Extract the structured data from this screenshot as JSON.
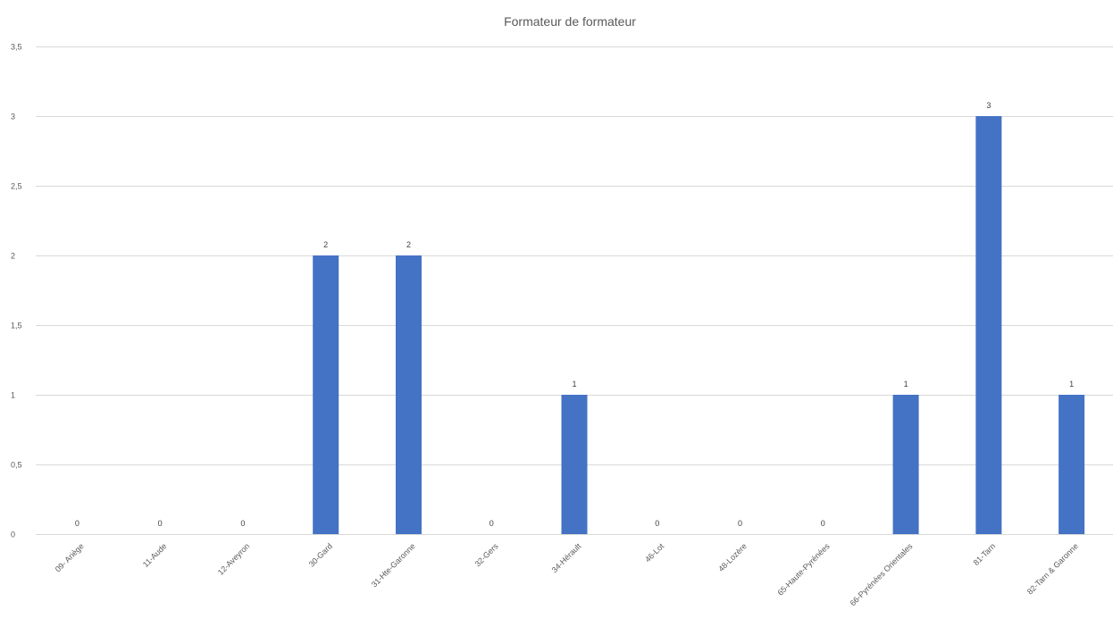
{
  "chart_data": {
    "type": "bar",
    "title": "Formateur de formateur",
    "xlabel": "",
    "ylabel": "",
    "categories": [
      "09- Ariège",
      "11-Aude",
      "12-Aveyron",
      "30-Gard",
      "31-Hte-Garonne",
      "32-Gers",
      "34-Hérault",
      "46-Lot",
      "48-Lozère",
      "65-Haute-Pyrénées",
      "66-Pyrénées Orientales",
      "81-Tarn",
      "82-Tarn & Garonne"
    ],
    "values": [
      0,
      0,
      0,
      2,
      2,
      0,
      1,
      0,
      0,
      0,
      1,
      3,
      1
    ],
    "data_labels": [
      "0",
      "0",
      "0",
      "2",
      "2",
      "0",
      "1",
      "0",
      "0",
      "0",
      "1",
      "3",
      "1"
    ],
    "ylim": [
      0,
      3.5
    ],
    "yticks": [
      0,
      0.5,
      1,
      1.5,
      2,
      2.5,
      3,
      3.5
    ],
    "ytick_labels": [
      "0",
      "0,5",
      "1",
      "1,5",
      "2",
      "2,5",
      "3",
      "3,5"
    ],
    "grid": true,
    "legend": "none",
    "colors": {
      "bar": "#4472c4",
      "grid": "#d9d9d9",
      "text": "#595959"
    }
  }
}
